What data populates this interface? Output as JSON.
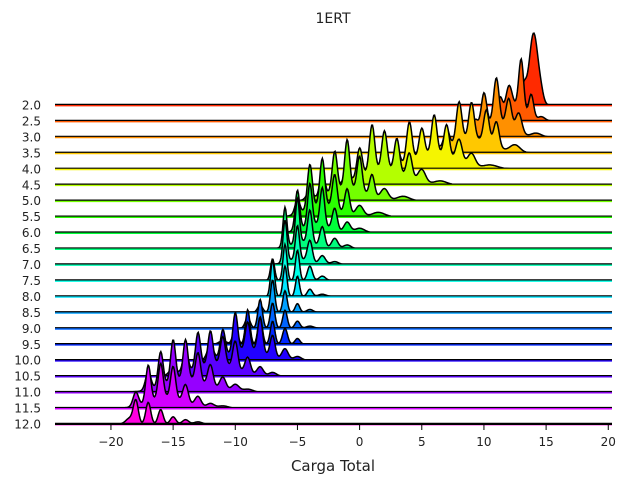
{
  "chart_data": {
    "type": "ridgeline",
    "title": "1ERT",
    "xlabel": "Carga Total",
    "ylabel": "",
    "xlim": [
      -24.5,
      20.3
    ],
    "xticks": [
      -20,
      -15,
      -10,
      -5,
      0,
      5,
      10,
      15,
      20
    ],
    "grid": false,
    "legend": "none",
    "colormap": "gist_rainbow",
    "series": [
      {
        "label": "2.0",
        "color": "#ff2a00",
        "peaks": [
          [
            14.0,
            0.35,
            1.0
          ],
          [
            13.2,
            0.2,
            0.25
          ],
          [
            14.6,
            0.2,
            0.1
          ]
        ]
      },
      {
        "label": "2.5",
        "color": "#ff5a00",
        "peaks": [
          [
            13.0,
            0.2,
            0.72
          ],
          [
            12.0,
            0.25,
            0.35
          ],
          [
            11.3,
            0.2,
            0.3
          ],
          [
            13.8,
            0.2,
            0.35
          ],
          [
            12.5,
            0.6,
            0.2
          ],
          [
            14.6,
            0.3,
            0.06
          ]
        ]
      },
      {
        "label": "3.0",
        "color": "#ff9000",
        "peaks": [
          [
            11.0,
            0.22,
            0.62
          ],
          [
            10.0,
            0.22,
            0.48
          ],
          [
            12.0,
            0.22,
            0.4
          ],
          [
            9.3,
            0.22,
            0.18
          ],
          [
            12.8,
            0.25,
            0.28
          ],
          [
            11.0,
            1.1,
            0.2
          ],
          [
            14.2,
            0.4,
            0.05
          ]
        ]
      },
      {
        "label": "3.5",
        "color": "#ffc800",
        "peaks": [
          [
            8.0,
            0.22,
            0.55
          ],
          [
            9.0,
            0.22,
            0.5
          ],
          [
            10.2,
            0.22,
            0.45
          ],
          [
            11.0,
            0.22,
            0.35
          ],
          [
            7.0,
            0.22,
            0.25
          ],
          [
            6.0,
            0.3,
            0.12
          ],
          [
            12.5,
            0.4,
            0.1
          ],
          [
            9.0,
            1.5,
            0.2
          ]
        ]
      },
      {
        "label": "4.0",
        "color": "#f5f500",
        "peaks": [
          [
            4.0,
            0.22,
            0.56
          ],
          [
            6.0,
            0.22,
            0.55
          ],
          [
            7.0,
            0.22,
            0.45
          ],
          [
            5.0,
            0.22,
            0.4
          ],
          [
            8.0,
            0.25,
            0.32
          ],
          [
            3.0,
            0.22,
            0.28
          ],
          [
            9.0,
            0.3,
            0.18
          ],
          [
            6.0,
            1.6,
            0.2
          ],
          [
            10.5,
            0.6,
            0.05
          ]
        ]
      },
      {
        "label": "4.5",
        "color": "#b4ff00",
        "peaks": [
          [
            1.0,
            0.22,
            0.67
          ],
          [
            2.0,
            0.22,
            0.55
          ],
          [
            3.0,
            0.22,
            0.48
          ],
          [
            0.0,
            0.22,
            0.42
          ],
          [
            4.0,
            0.22,
            0.35
          ],
          [
            -1.0,
            0.22,
            0.2
          ],
          [
            5.0,
            0.3,
            0.18
          ],
          [
            6.5,
            0.5,
            0.05
          ],
          [
            2.0,
            1.6,
            0.2
          ]
        ]
      },
      {
        "label": "5.0",
        "color": "#73ff00",
        "peaks": [
          [
            -1.0,
            0.2,
            0.67
          ],
          [
            -2.0,
            0.2,
            0.55
          ],
          [
            0.0,
            0.2,
            0.48
          ],
          [
            -3.0,
            0.2,
            0.35
          ],
          [
            1.0,
            0.2,
            0.3
          ],
          [
            2.0,
            0.3,
            0.15
          ],
          [
            -4.0,
            0.25,
            0.12
          ],
          [
            3.5,
            0.5,
            0.06
          ],
          [
            -1.0,
            1.4,
            0.18
          ]
        ]
      },
      {
        "label": "5.5",
        "color": "#2aff00",
        "peaks": [
          [
            -3.0,
            0.2,
            0.66
          ],
          [
            -4.0,
            0.2,
            0.62
          ],
          [
            -2.0,
            0.2,
            0.48
          ],
          [
            -1.0,
            0.2,
            0.35
          ],
          [
            -5.0,
            0.2,
            0.2
          ],
          [
            0.0,
            0.3,
            0.15
          ],
          [
            1.5,
            0.5,
            0.06
          ],
          [
            -3.0,
            1.2,
            0.15
          ]
        ]
      },
      {
        "label": "6.0",
        "color": "#00ff3a",
        "peaks": [
          [
            -5.0,
            0.18,
            0.55
          ],
          [
            -4.0,
            0.18,
            0.58
          ],
          [
            -3.0,
            0.18,
            0.52
          ],
          [
            -2.0,
            0.2,
            0.3
          ],
          [
            -1.0,
            0.25,
            0.14
          ],
          [
            0.0,
            0.4,
            0.06
          ],
          [
            -3.5,
            1.0,
            0.12
          ]
        ]
      },
      {
        "label": "6.5",
        "color": "#00ff7d",
        "peaks": [
          [
            -6.0,
            0.16,
            0.55
          ],
          [
            -5.0,
            0.16,
            0.62
          ],
          [
            -4.0,
            0.18,
            0.45
          ],
          [
            -3.0,
            0.2,
            0.28
          ],
          [
            -2.0,
            0.25,
            0.14
          ],
          [
            -1.0,
            0.3,
            0.05
          ],
          [
            -4.5,
            0.9,
            0.1
          ]
        ]
      },
      {
        "label": "7.0",
        "color": "#00ffb4",
        "peaks": [
          [
            -6.0,
            0.16,
            0.58
          ],
          [
            -5.0,
            0.16,
            0.46
          ],
          [
            -4.0,
            0.2,
            0.3
          ],
          [
            -3.0,
            0.25,
            0.12
          ],
          [
            -2.0,
            0.3,
            0.04
          ],
          [
            -5.0,
            0.8,
            0.08
          ]
        ]
      },
      {
        "label": "7.5",
        "color": "#00ffe6",
        "peaks": [
          [
            -7.0,
            0.16,
            0.3
          ],
          [
            -6.0,
            0.16,
            0.5
          ],
          [
            -5.0,
            0.16,
            0.42
          ],
          [
            -4.0,
            0.2,
            0.2
          ],
          [
            -3.0,
            0.25,
            0.06
          ]
        ]
      },
      {
        "label": "8.0",
        "color": "#00e6ff",
        "peaks": [
          [
            -7.0,
            0.16,
            0.5
          ],
          [
            -6.0,
            0.16,
            0.42
          ],
          [
            -5.0,
            0.16,
            0.28
          ],
          [
            -4.0,
            0.2,
            0.1
          ],
          [
            -3.0,
            0.3,
            0.03
          ]
        ]
      },
      {
        "label": "8.5",
        "color": "#00a0ff",
        "peaks": [
          [
            -7.0,
            0.17,
            0.45
          ],
          [
            -6.0,
            0.17,
            0.3
          ],
          [
            -5.0,
            0.18,
            0.12
          ],
          [
            -8.0,
            0.2,
            0.1
          ],
          [
            -4.0,
            0.25,
            0.04
          ]
        ]
      },
      {
        "label": "9.0",
        "color": "#0064ff",
        "peaks": [
          [
            -8.0,
            0.18,
            0.4
          ],
          [
            -7.0,
            0.18,
            0.35
          ],
          [
            -6.0,
            0.18,
            0.25
          ],
          [
            -9.0,
            0.2,
            0.15
          ],
          [
            -5.0,
            0.2,
            0.1
          ],
          [
            -4.0,
            0.3,
            0.03
          ]
        ]
      },
      {
        "label": "9.5",
        "color": "#0028ff",
        "peaks": [
          [
            -9.0,
            0.18,
            0.48
          ],
          [
            -8.0,
            0.18,
            0.38
          ],
          [
            -7.0,
            0.18,
            0.32
          ],
          [
            -10.0,
            0.2,
            0.22
          ],
          [
            -6.0,
            0.2,
            0.22
          ],
          [
            -5.0,
            0.2,
            0.08
          ],
          [
            -11.0,
            0.3,
            0.05
          ]
        ]
      },
      {
        "label": "10.0",
        "color": "#2200ff",
        "peaks": [
          [
            -10.0,
            0.2,
            0.55
          ],
          [
            -8.0,
            0.2,
            0.48
          ],
          [
            -11.0,
            0.2,
            0.38
          ],
          [
            -9.0,
            0.2,
            0.38
          ],
          [
            -7.0,
            0.2,
            0.3
          ],
          [
            -12.0,
            0.25,
            0.2
          ],
          [
            -6.0,
            0.25,
            0.15
          ],
          [
            -5.0,
            0.3,
            0.05
          ],
          [
            -9.0,
            1.3,
            0.15
          ]
        ]
      },
      {
        "label": "10.5",
        "color": "#5a00ff",
        "peaks": [
          [
            -13.0,
            0.2,
            0.5
          ],
          [
            -12.0,
            0.2,
            0.46
          ],
          [
            -11.0,
            0.2,
            0.38
          ],
          [
            -10.0,
            0.2,
            0.38
          ],
          [
            -14.0,
            0.22,
            0.3
          ],
          [
            -9.0,
            0.22,
            0.22
          ],
          [
            -8.0,
            0.25,
            0.12
          ],
          [
            -7.0,
            0.3,
            0.05
          ],
          [
            -15.0,
            0.3,
            0.1
          ],
          [
            -11.5,
            1.5,
            0.18
          ]
        ]
      },
      {
        "label": "11.0",
        "color": "#9600ff",
        "peaks": [
          [
            -15.0,
            0.2,
            0.58
          ],
          [
            -14.0,
            0.2,
            0.55
          ],
          [
            -16.0,
            0.2,
            0.48
          ],
          [
            -13.0,
            0.2,
            0.4
          ],
          [
            -12.0,
            0.22,
            0.3
          ],
          [
            -11.0,
            0.25,
            0.18
          ],
          [
            -17.0,
            0.22,
            0.25
          ],
          [
            -10.0,
            0.3,
            0.1
          ],
          [
            -9.0,
            0.4,
            0.04
          ],
          [
            -14.0,
            1.6,
            0.18
          ]
        ]
      },
      {
        "label": "11.5",
        "color": "#d200ff",
        "peaks": [
          [
            -17.0,
            0.2,
            0.52
          ],
          [
            -16.0,
            0.2,
            0.48
          ],
          [
            -15.0,
            0.2,
            0.44
          ],
          [
            -14.0,
            0.22,
            0.25
          ],
          [
            -18.0,
            0.22,
            0.2
          ],
          [
            -13.0,
            0.25,
            0.14
          ],
          [
            -12.0,
            0.3,
            0.06
          ],
          [
            -11.0,
            0.4,
            0.03
          ],
          [
            -15.5,
            1.3,
            0.15
          ]
        ]
      },
      {
        "label": "12.0",
        "color": "#ff00e0",
        "peaks": [
          [
            -18.0,
            0.2,
            0.32
          ],
          [
            -17.0,
            0.2,
            0.3
          ],
          [
            -16.0,
            0.2,
            0.2
          ],
          [
            -15.0,
            0.22,
            0.1
          ],
          [
            -14.0,
            0.25,
            0.06
          ],
          [
            -13.0,
            0.3,
            0.03
          ],
          [
            -18.5,
            0.3,
            0.08
          ]
        ]
      }
    ]
  }
}
